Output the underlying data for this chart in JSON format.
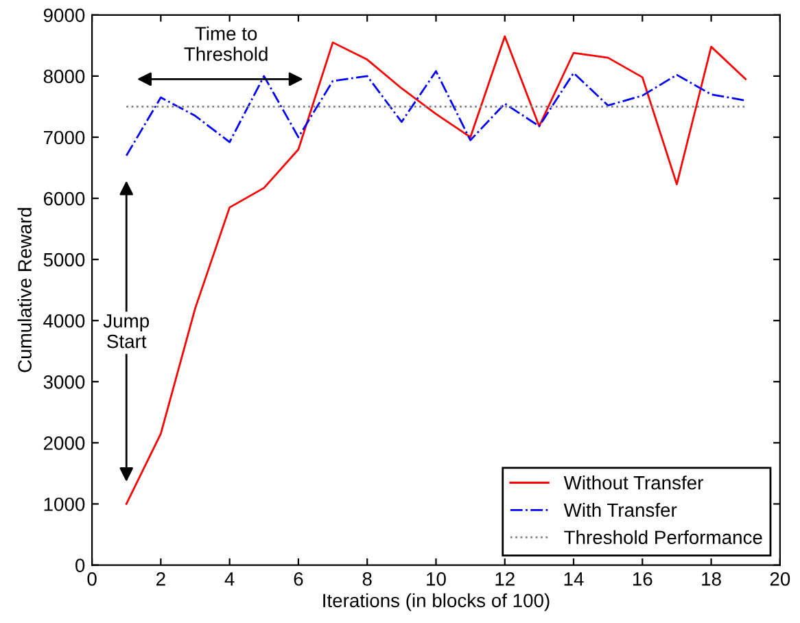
{
  "chart_data": {
    "type": "line",
    "xlabel": "Iterations (in blocks of 100)",
    "ylabel": "Cumulative Reward",
    "x": [
      1,
      2,
      3,
      4,
      5,
      6,
      7,
      8,
      9,
      10,
      11,
      12,
      13,
      14,
      15,
      16,
      17,
      18,
      19
    ],
    "series": [
      {
        "name": "Without Transfer",
        "color": "#ff0000",
        "line_style": "solid",
        "values": [
          1000,
          2150,
          4200,
          5850,
          6170,
          6800,
          8550,
          8270,
          7800,
          7380,
          7000,
          8650,
          7180,
          8380,
          8300,
          7980,
          6230,
          8480,
          7950
        ]
      },
      {
        "name": "With Transfer",
        "color": "#0000ff",
        "line_style": "dashdot",
        "values": [
          6700,
          7650,
          7350,
          6920,
          8000,
          7000,
          7920,
          8000,
          7250,
          8080,
          6950,
          7550,
          7180,
          8050,
          7520,
          7680,
          8020,
          7700,
          7600
        ]
      },
      {
        "name": "Threshold Performance",
        "color": "#808080",
        "line_style": "dotted",
        "values": [
          7500,
          7500,
          7500,
          7500,
          7500,
          7500,
          7500,
          7500,
          7500,
          7500,
          7500,
          7500,
          7500,
          7500,
          7500,
          7500,
          7500,
          7500,
          7500
        ]
      }
    ],
    "annotations": [
      "Time to\nThreshold",
      "Jump\nStart"
    ],
    "xlim": [
      0,
      20
    ],
    "xticks": [
      0,
      2,
      4,
      6,
      8,
      10,
      12,
      14,
      16,
      18,
      20
    ],
    "ylim": [
      0,
      9000
    ],
    "yticks": [
      0,
      1000,
      2000,
      3000,
      4000,
      5000,
      6000,
      7000,
      8000,
      9000
    ],
    "grid": false,
    "legend": "bottom right",
    "marker": "none"
  }
}
